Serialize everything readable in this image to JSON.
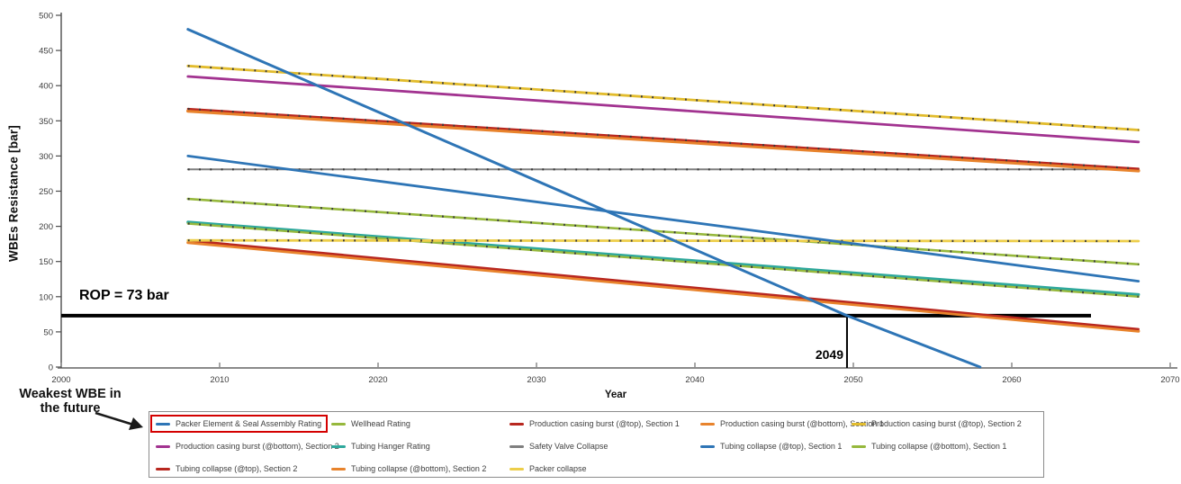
{
  "chart_data": {
    "type": "line",
    "title": "",
    "xlabel": "Year",
    "ylabel": "WBEs Resistance [bar]",
    "xlim": [
      2000,
      2070
    ],
    "ylim": [
      0,
      500
    ],
    "grid": false,
    "x_ticks": [
      "2000",
      "2010",
      "2020",
      "2030",
      "2040",
      "2050",
      "2060",
      "2070"
    ],
    "y_ticks": [
      "0",
      "50",
      "100",
      "150",
      "200",
      "250",
      "300",
      "350",
      "400",
      "450",
      "500"
    ],
    "legend_position": "bottom",
    "annotations": {
      "rop_label": "ROP = 73 bar",
      "rop_value": 73,
      "rop_x_start": 2000,
      "rop_x_end": 2065,
      "intersection_year": "2049",
      "intersection_year_x": 2049.6,
      "weakest_line1": "Weakest WBE in",
      "weakest_line2": "the future"
    },
    "series": [
      {
        "name": "Safety Valve Collapse",
        "color": "#7F7F7F",
        "width": 2.0,
        "markers": true,
        "points": [
          [
            2008,
            281
          ],
          [
            2068,
            281
          ]
        ]
      },
      {
        "name": "Tubing Hanger Rating",
        "color": "#2EA89C",
        "width": 3.2,
        "markers": false,
        "points": [
          [
            2008,
            206
          ],
          [
            2068,
            103
          ]
        ]
      },
      {
        "name": "Tubing collapse (@bottom), Section 1",
        "color": "#96B83C",
        "width": 2.4,
        "markers": true,
        "points": [
          [
            2008,
            204
          ],
          [
            2068,
            100
          ]
        ]
      },
      {
        "name": "Wellhead Rating",
        "color": "#96B83C",
        "width": 2.6,
        "markers": true,
        "points": [
          [
            2008,
            239
          ],
          [
            2068,
            146
          ]
        ]
      },
      {
        "name": "Production casing burst (@bottom), Section 1",
        "color": "#E8832C",
        "width": 3.6,
        "markers": false,
        "points": [
          [
            2008,
            364
          ],
          [
            2068,
            279
          ]
        ]
      },
      {
        "name": "Production casing burst (@top), Section 1",
        "color": "#B8271F",
        "width": 2.2,
        "markers": true,
        "points": [
          [
            2008,
            367
          ],
          [
            2068,
            282
          ]
        ]
      },
      {
        "name": "Tubing collapse (@bottom), Section 2",
        "color": "#E8832C",
        "width": 3.2,
        "markers": false,
        "points": [
          [
            2008,
            177
          ],
          [
            2068,
            51
          ]
        ]
      },
      {
        "name": "Tubing collapse (@top), Section 2",
        "color": "#B8271F",
        "width": 2.4,
        "markers": false,
        "points": [
          [
            2008,
            180
          ],
          [
            2068,
            54
          ]
        ]
      },
      {
        "name": "Production casing burst (@bottom), Section 2",
        "color": "#A23390",
        "width": 2.8,
        "markers": false,
        "points": [
          [
            2008,
            413
          ],
          [
            2068,
            320
          ]
        ]
      },
      {
        "name": "Production casing burst (@top), Section 2",
        "color": "#E2BC2D",
        "width": 2.8,
        "markers": true,
        "points": [
          [
            2008,
            428
          ],
          [
            2068,
            337
          ]
        ]
      },
      {
        "name": "Packer collapse",
        "color": "#EDCE4A",
        "width": 2.8,
        "markers": true,
        "points": [
          [
            2008,
            180
          ],
          [
            2068,
            179
          ]
        ]
      },
      {
        "name": "Tubing collapse (@top), Section 1",
        "color": "#2E75B6",
        "width": 2.8,
        "markers": false,
        "points": [
          [
            2008,
            300
          ],
          [
            2068,
            122
          ]
        ]
      },
      {
        "name": "Packer Element & Seal Assembly Rating",
        "color": "#2E75B6",
        "width": 3.0,
        "markers": false,
        "points": [
          [
            2008,
            480
          ],
          [
            2049.6,
            73
          ],
          [
            2058,
            0
          ]
        ]
      }
    ]
  },
  "legend": {
    "rows": [
      [
        {
          "label": "Packer Element & Seal Assembly Rating",
          "color": "#2E75B6",
          "highlighted": true
        },
        {
          "label": "Wellhead Rating",
          "color": "#96B83C"
        },
        {
          "label": "Production casing burst (@top), Section 1",
          "color": "#B8271F"
        },
        {
          "label": "Production casing burst (@bottom), Section 1",
          "color": "#E8832C"
        },
        {
          "label": "Production casing burst (@top), Section 2",
          "color": "#E2BC2D"
        }
      ],
      [
        {
          "label": "Production casing burst (@bottom), Section 2",
          "color": "#A23390"
        },
        {
          "label": "Tubing Hanger Rating",
          "color": "#2EA89C"
        },
        {
          "label": "Safety Valve Collapse",
          "color": "#7F7F7F"
        },
        {
          "label": "Tubing collapse (@top), Section 1",
          "color": "#2E75B6"
        },
        {
          "label": "Tubing collapse (@bottom), Section 1",
          "color": "#96B83C"
        }
      ],
      [
        {
          "label": "Tubing collapse (@top), Section 2",
          "color": "#B8271F"
        },
        {
          "label": "Tubing collapse (@bottom), Section 2",
          "color": "#E8832C"
        },
        {
          "label": "Packer collapse",
          "color": "#EDCE4A"
        }
      ]
    ]
  }
}
